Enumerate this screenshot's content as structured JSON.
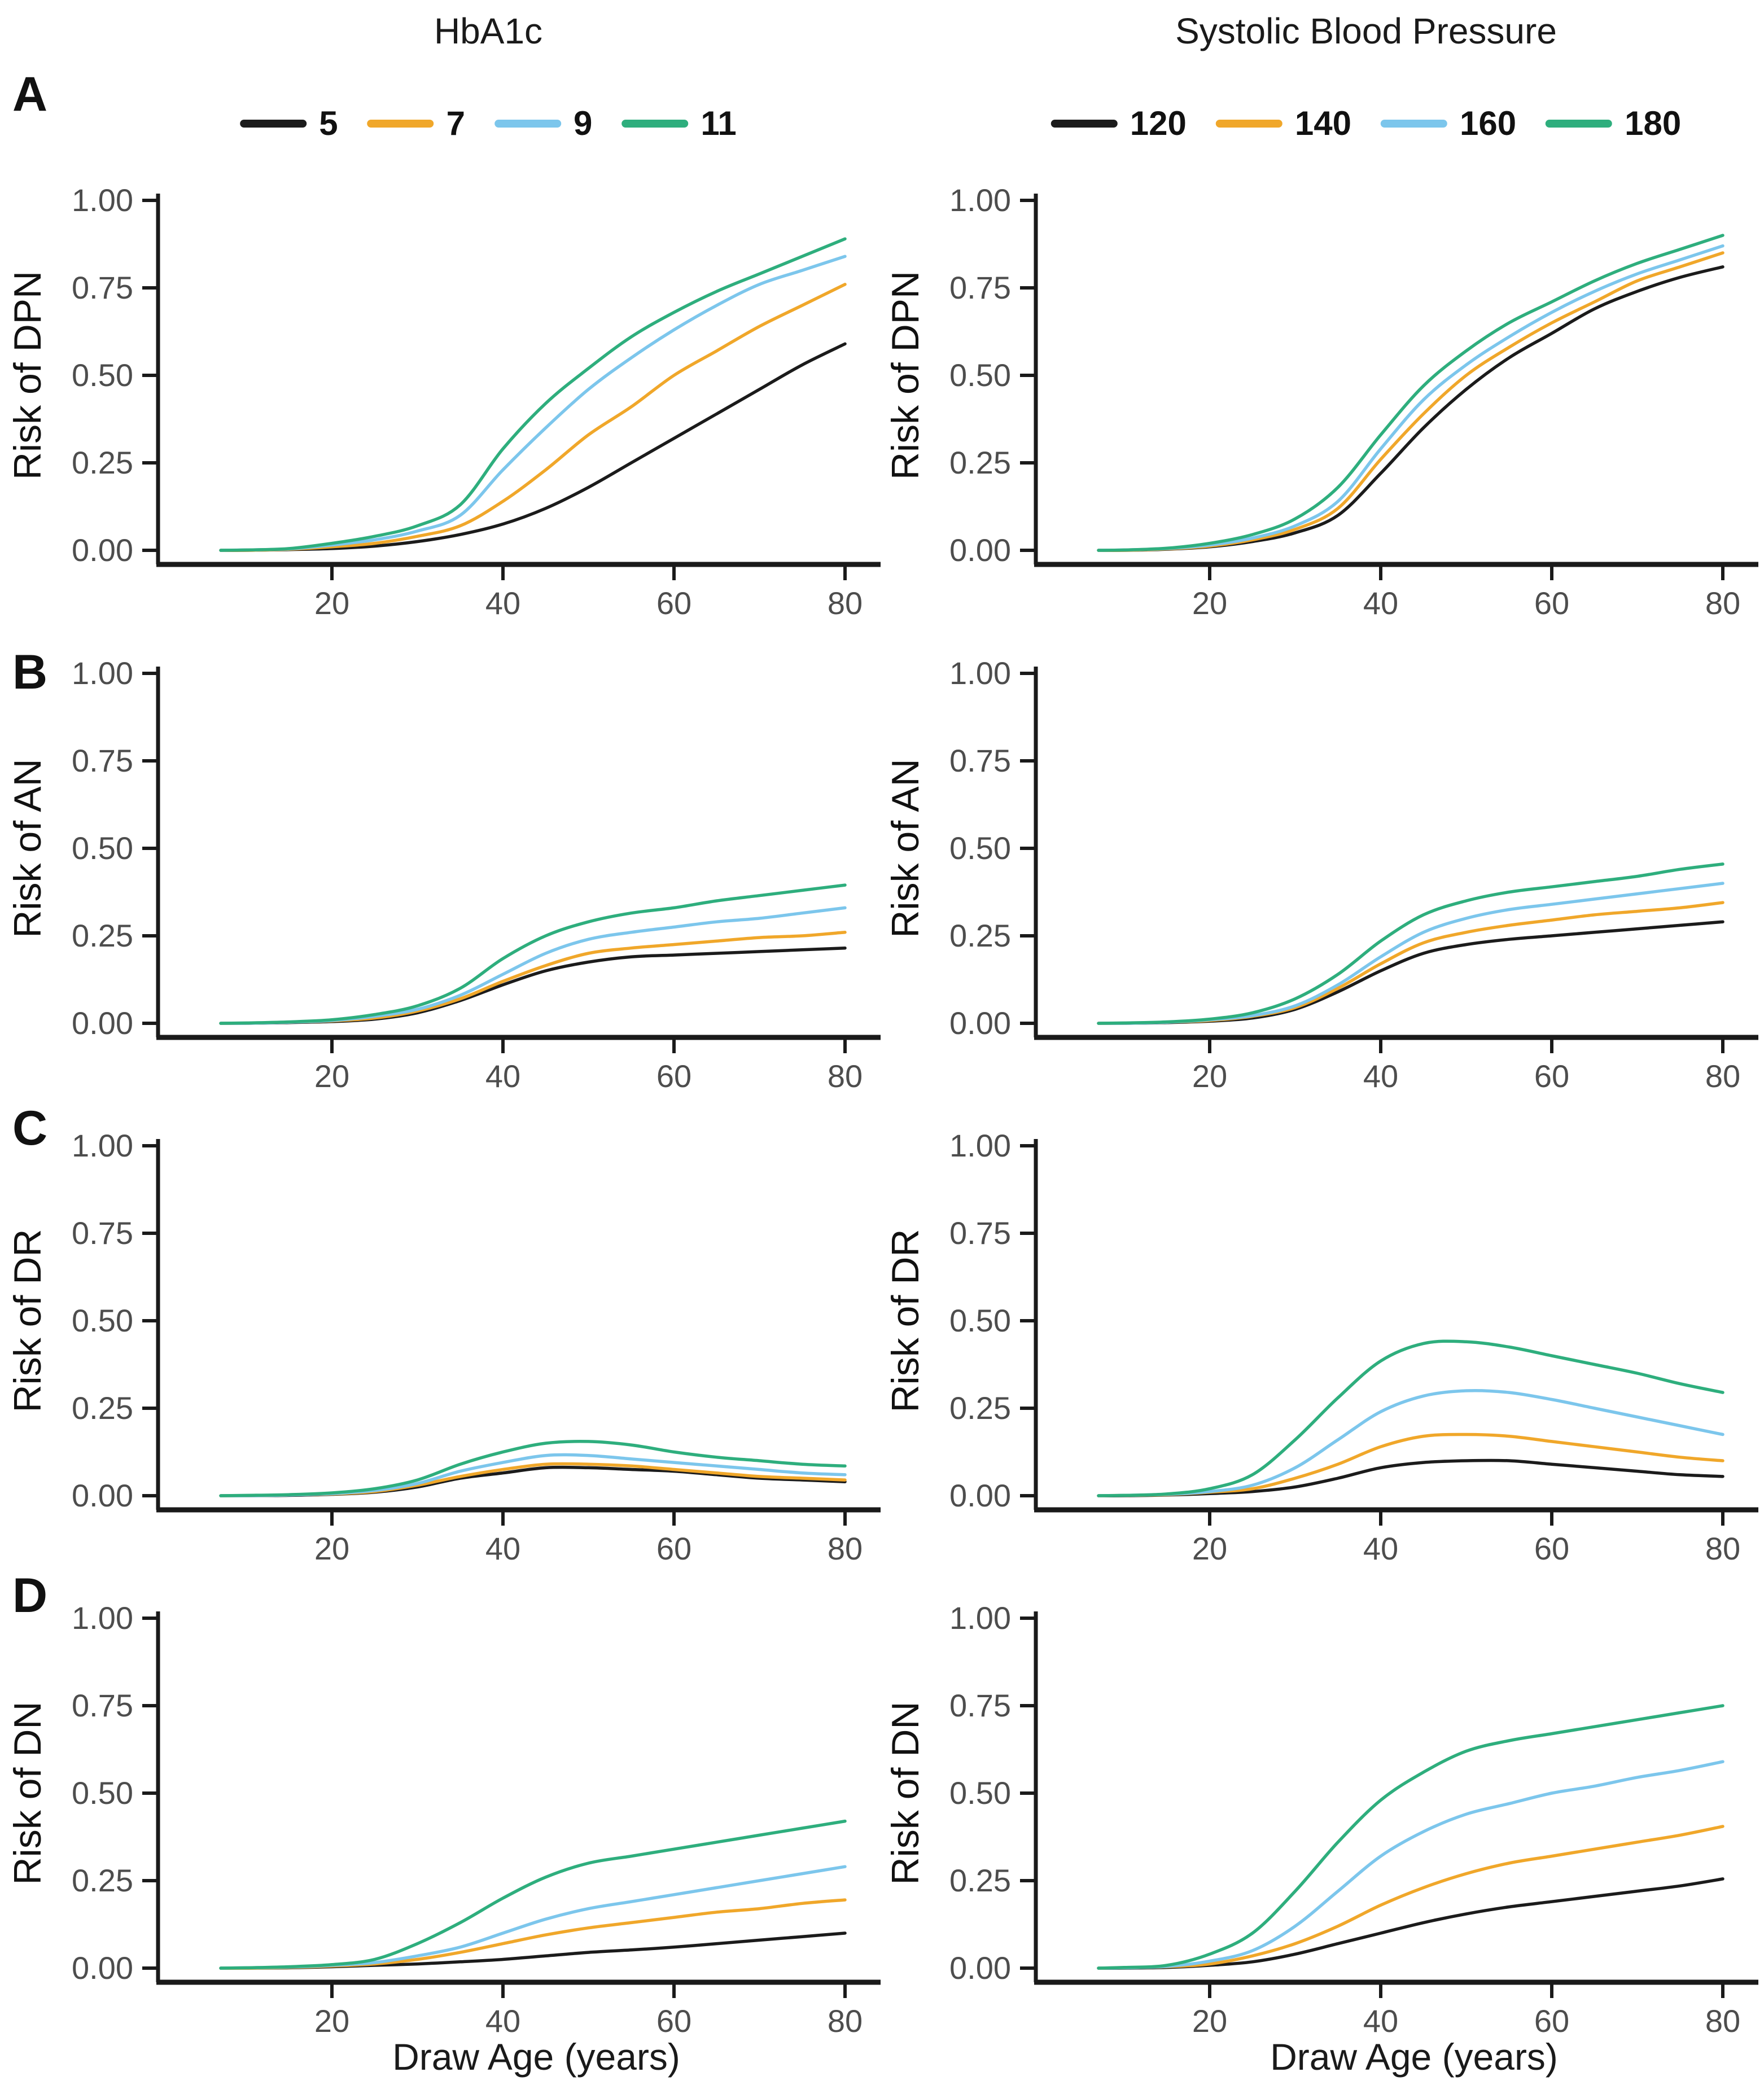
{
  "figure": {
    "rows": [
      {
        "letter": "A",
        "ylabel": "Risk of DPN"
      },
      {
        "letter": "B",
        "ylabel": "Risk of AN"
      },
      {
        "letter": "C",
        "ylabel": "Risk of DR"
      },
      {
        "letter": "D",
        "ylabel": "Risk of DN"
      }
    ],
    "columns": [
      {
        "title": "HbA1c",
        "legend": {
          "items": [
            {
              "label": "5",
              "color": "#1b1b1b"
            },
            {
              "label": "7",
              "color": "#f0a72a"
            },
            {
              "label": "9",
              "color": "#7cc6ec"
            },
            {
              "label": "11",
              "color": "#2eae7d"
            }
          ]
        }
      },
      {
        "title": "Systolic Blood Pressure",
        "legend": {
          "items": [
            {
              "label": "120",
              "color": "#1b1b1b"
            },
            {
              "label": "140",
              "color": "#f0a72a"
            },
            {
              "label": "160",
              "color": "#7cc6ec"
            },
            {
              "label": "180",
              "color": "#2eae7d"
            }
          ]
        }
      }
    ],
    "x_axis_label": "Draw Age (years)",
    "x_ticks": [
      20,
      40,
      60,
      80
    ],
    "y_ticks": {
      "values": [
        0,
        0.25,
        0.5,
        0.75,
        1.0
      ],
      "labels": [
        "0.00",
        "0.25",
        "0.50",
        "0.75",
        "1.00"
      ]
    },
    "x_range": [
      5,
      80
    ],
    "y_range": [
      0,
      1
    ],
    "grid": "off",
    "legend_position": "top",
    "tick_label_color": "#4d4d4d",
    "axis_color": "#1a1a1a"
  },
  "chart_data": [
    {
      "id": "A-hba1c",
      "type": "line",
      "row": "A",
      "column": "HbA1c",
      "ylabel": "Risk of DPN",
      "x": [
        7,
        10,
        15,
        20,
        25,
        30,
        35,
        40,
        45,
        50,
        55,
        60,
        65,
        70,
        75,
        80
      ],
      "series": [
        {
          "name": "5",
          "color": "#1b1b1b",
          "values": [
            0,
            0,
            0.002,
            0.005,
            0.012,
            0.025,
            0.045,
            0.075,
            0.12,
            0.18,
            0.25,
            0.32,
            0.39,
            0.46,
            0.53,
            0.59
          ]
        },
        {
          "name": "7",
          "color": "#f0a72a",
          "values": [
            0,
            0,
            0.003,
            0.01,
            0.02,
            0.04,
            0.07,
            0.14,
            0.23,
            0.33,
            0.41,
            0.5,
            0.57,
            0.64,
            0.7,
            0.76
          ]
        },
        {
          "name": "9",
          "color": "#7cc6ec",
          "values": [
            0,
            0.001,
            0.004,
            0.015,
            0.03,
            0.055,
            0.1,
            0.23,
            0.35,
            0.46,
            0.55,
            0.63,
            0.7,
            0.76,
            0.8,
            0.84
          ]
        },
        {
          "name": "11",
          "color": "#2eae7d",
          "values": [
            0,
            0.001,
            0.005,
            0.02,
            0.04,
            0.07,
            0.13,
            0.29,
            0.42,
            0.52,
            0.61,
            0.68,
            0.74,
            0.79,
            0.84,
            0.89
          ]
        }
      ]
    },
    {
      "id": "A-sbp",
      "type": "line",
      "row": "A",
      "column": "Systolic Blood Pressure",
      "ylabel": "Risk of DPN",
      "x": [
        7,
        10,
        15,
        20,
        25,
        30,
        35,
        40,
        45,
        50,
        55,
        60,
        65,
        70,
        75,
        80
      ],
      "series": [
        {
          "name": "120",
          "color": "#1b1b1b",
          "values": [
            0,
            0,
            0.003,
            0.01,
            0.025,
            0.05,
            0.1,
            0.22,
            0.35,
            0.46,
            0.55,
            0.62,
            0.69,
            0.74,
            0.78,
            0.81
          ]
        },
        {
          "name": "140",
          "color": "#f0a72a",
          "values": [
            0,
            0,
            0.004,
            0.012,
            0.03,
            0.06,
            0.12,
            0.26,
            0.39,
            0.5,
            0.58,
            0.65,
            0.71,
            0.77,
            0.81,
            0.85
          ]
        },
        {
          "name": "160",
          "color": "#7cc6ec",
          "values": [
            0,
            0.001,
            0.005,
            0.015,
            0.035,
            0.07,
            0.14,
            0.29,
            0.43,
            0.53,
            0.61,
            0.68,
            0.74,
            0.79,
            0.83,
            0.87
          ]
        },
        {
          "name": "180",
          "color": "#2eae7d",
          "values": [
            0,
            0.001,
            0.006,
            0.02,
            0.045,
            0.09,
            0.18,
            0.33,
            0.47,
            0.57,
            0.65,
            0.71,
            0.77,
            0.82,
            0.86,
            0.9
          ]
        }
      ]
    },
    {
      "id": "B-hba1c",
      "type": "line",
      "row": "B",
      "column": "HbA1c",
      "ylabel": "Risk of AN",
      "x": [
        7,
        10,
        15,
        20,
        25,
        30,
        35,
        40,
        45,
        50,
        55,
        60,
        65,
        70,
        75,
        80
      ],
      "series": [
        {
          "name": "5",
          "color": "#1b1b1b",
          "values": [
            0,
            0,
            0.002,
            0.005,
            0.012,
            0.03,
            0.065,
            0.11,
            0.15,
            0.175,
            0.19,
            0.195,
            0.2,
            0.205,
            0.21,
            0.215
          ]
        },
        {
          "name": "7",
          "color": "#f0a72a",
          "values": [
            0,
            0,
            0.003,
            0.007,
            0.015,
            0.035,
            0.07,
            0.12,
            0.165,
            0.2,
            0.215,
            0.225,
            0.235,
            0.245,
            0.25,
            0.26
          ]
        },
        {
          "name": "9",
          "color": "#7cc6ec",
          "values": [
            0,
            0,
            0.003,
            0.008,
            0.02,
            0.04,
            0.08,
            0.14,
            0.2,
            0.24,
            0.26,
            0.275,
            0.29,
            0.3,
            0.315,
            0.33
          ]
        },
        {
          "name": "11",
          "color": "#2eae7d",
          "values": [
            0,
            0.001,
            0.004,
            0.01,
            0.025,
            0.05,
            0.1,
            0.185,
            0.25,
            0.29,
            0.315,
            0.33,
            0.35,
            0.365,
            0.38,
            0.395
          ]
        }
      ]
    },
    {
      "id": "B-sbp",
      "type": "line",
      "row": "B",
      "column": "Systolic Blood Pressure",
      "ylabel": "Risk of AN",
      "x": [
        7,
        10,
        15,
        20,
        25,
        30,
        35,
        40,
        45,
        50,
        55,
        60,
        65,
        70,
        75,
        80
      ],
      "series": [
        {
          "name": "120",
          "color": "#1b1b1b",
          "values": [
            0,
            0,
            0.002,
            0.006,
            0.015,
            0.04,
            0.09,
            0.15,
            0.2,
            0.225,
            0.24,
            0.25,
            0.26,
            0.27,
            0.28,
            0.29
          ]
        },
        {
          "name": "140",
          "color": "#f0a72a",
          "values": [
            0,
            0,
            0.003,
            0.008,
            0.02,
            0.045,
            0.1,
            0.17,
            0.23,
            0.26,
            0.28,
            0.295,
            0.31,
            0.32,
            0.33,
            0.345
          ]
        },
        {
          "name": "160",
          "color": "#7cc6ec",
          "values": [
            0,
            0,
            0.003,
            0.01,
            0.022,
            0.05,
            0.11,
            0.19,
            0.26,
            0.3,
            0.325,
            0.34,
            0.355,
            0.37,
            0.385,
            0.4
          ]
        },
        {
          "name": "180",
          "color": "#2eae7d",
          "values": [
            0,
            0.001,
            0.004,
            0.012,
            0.03,
            0.07,
            0.14,
            0.235,
            0.31,
            0.35,
            0.375,
            0.39,
            0.405,
            0.42,
            0.44,
            0.455
          ]
        }
      ]
    },
    {
      "id": "C-hba1c",
      "type": "line",
      "row": "C",
      "column": "HbA1c",
      "ylabel": "Risk of DR",
      "x": [
        7,
        10,
        15,
        20,
        25,
        30,
        35,
        40,
        45,
        50,
        55,
        60,
        65,
        70,
        75,
        80
      ],
      "series": [
        {
          "name": "5",
          "color": "#1b1b1b",
          "values": [
            0,
            0,
            0.001,
            0.004,
            0.01,
            0.025,
            0.05,
            0.065,
            0.08,
            0.08,
            0.075,
            0.07,
            0.06,
            0.05,
            0.045,
            0.04
          ]
        },
        {
          "name": "7",
          "color": "#f0a72a",
          "values": [
            0,
            0,
            0.002,
            0.005,
            0.012,
            0.03,
            0.055,
            0.075,
            0.09,
            0.09,
            0.085,
            0.075,
            0.065,
            0.055,
            0.05,
            0.045
          ]
        },
        {
          "name": "9",
          "color": "#7cc6ec",
          "values": [
            0,
            0,
            0.002,
            0.006,
            0.015,
            0.035,
            0.07,
            0.095,
            0.115,
            0.115,
            0.105,
            0.095,
            0.085,
            0.075,
            0.065,
            0.06
          ]
        },
        {
          "name": "11",
          "color": "#2eae7d",
          "values": [
            0,
            0.001,
            0.003,
            0.008,
            0.02,
            0.045,
            0.09,
            0.125,
            0.15,
            0.155,
            0.145,
            0.125,
            0.11,
            0.1,
            0.09,
            0.085
          ]
        }
      ]
    },
    {
      "id": "C-sbp",
      "type": "line",
      "row": "C",
      "column": "Systolic Blood Pressure",
      "ylabel": "Risk of DR",
      "x": [
        7,
        10,
        15,
        20,
        25,
        30,
        35,
        40,
        45,
        50,
        55,
        60,
        65,
        70,
        75,
        80
      ],
      "series": [
        {
          "name": "120",
          "color": "#1b1b1b",
          "values": [
            0,
            0,
            0.002,
            0.006,
            0.012,
            0.025,
            0.05,
            0.08,
            0.095,
            0.1,
            0.1,
            0.09,
            0.08,
            0.07,
            0.06,
            0.055
          ]
        },
        {
          "name": "140",
          "color": "#f0a72a",
          "values": [
            0,
            0.001,
            0.003,
            0.01,
            0.02,
            0.05,
            0.09,
            0.14,
            0.17,
            0.175,
            0.17,
            0.155,
            0.14,
            0.125,
            0.11,
            0.1
          ]
        },
        {
          "name": "160",
          "color": "#7cc6ec",
          "values": [
            0,
            0.001,
            0.004,
            0.012,
            0.03,
            0.08,
            0.16,
            0.24,
            0.285,
            0.3,
            0.295,
            0.275,
            0.25,
            0.225,
            0.2,
            0.175
          ]
        },
        {
          "name": "180",
          "color": "#2eae7d",
          "values": [
            0,
            0.001,
            0.005,
            0.02,
            0.06,
            0.16,
            0.28,
            0.385,
            0.435,
            0.44,
            0.425,
            0.4,
            0.375,
            0.35,
            0.32,
            0.295
          ]
        }
      ]
    },
    {
      "id": "D-hba1c",
      "type": "line",
      "row": "D",
      "column": "HbA1c",
      "ylabel": "Risk of DN",
      "x": [
        7,
        10,
        15,
        20,
        25,
        30,
        35,
        40,
        45,
        50,
        55,
        60,
        65,
        70,
        75,
        80
      ],
      "series": [
        {
          "name": "5",
          "color": "#1b1b1b",
          "values": [
            0,
            0,
            0.001,
            0.004,
            0.008,
            0.012,
            0.018,
            0.025,
            0.035,
            0.045,
            0.052,
            0.06,
            0.07,
            0.08,
            0.09,
            0.1
          ]
        },
        {
          "name": "7",
          "color": "#f0a72a",
          "values": [
            0,
            0,
            0.002,
            0.006,
            0.012,
            0.025,
            0.045,
            0.07,
            0.095,
            0.115,
            0.13,
            0.145,
            0.16,
            0.17,
            0.185,
            0.195
          ]
        },
        {
          "name": "9",
          "color": "#7cc6ec",
          "values": [
            0,
            0.001,
            0.003,
            0.008,
            0.016,
            0.035,
            0.06,
            0.1,
            0.14,
            0.17,
            0.19,
            0.21,
            0.23,
            0.25,
            0.27,
            0.29
          ]
        },
        {
          "name": "11",
          "color": "#2eae7d",
          "values": [
            0,
            0.001,
            0.004,
            0.01,
            0.025,
            0.07,
            0.13,
            0.2,
            0.26,
            0.3,
            0.32,
            0.34,
            0.36,
            0.38,
            0.4,
            0.42
          ]
        }
      ]
    },
    {
      "id": "D-sbp",
      "type": "line",
      "row": "D",
      "column": "Systolic Blood Pressure",
      "ylabel": "Risk of DN",
      "x": [
        7,
        10,
        15,
        20,
        25,
        30,
        35,
        40,
        45,
        50,
        55,
        60,
        65,
        70,
        75,
        80
      ],
      "series": [
        {
          "name": "120",
          "color": "#1b1b1b",
          "values": [
            0,
            0,
            0.002,
            0.008,
            0.018,
            0.04,
            0.07,
            0.1,
            0.13,
            0.155,
            0.175,
            0.19,
            0.205,
            0.22,
            0.235,
            0.255
          ]
        },
        {
          "name": "140",
          "color": "#f0a72a",
          "values": [
            0,
            0.001,
            0.004,
            0.012,
            0.035,
            0.07,
            0.12,
            0.18,
            0.23,
            0.27,
            0.3,
            0.32,
            0.34,
            0.36,
            0.38,
            0.405
          ]
        },
        {
          "name": "160",
          "color": "#7cc6ec",
          "values": [
            0,
            0.001,
            0.005,
            0.02,
            0.05,
            0.12,
            0.22,
            0.32,
            0.39,
            0.44,
            0.47,
            0.5,
            0.52,
            0.545,
            0.565,
            0.59
          ]
        },
        {
          "name": "180",
          "color": "#2eae7d",
          "values": [
            0,
            0.002,
            0.008,
            0.04,
            0.1,
            0.22,
            0.36,
            0.48,
            0.56,
            0.62,
            0.65,
            0.67,
            0.69,
            0.71,
            0.73,
            0.75
          ]
        }
      ]
    }
  ]
}
